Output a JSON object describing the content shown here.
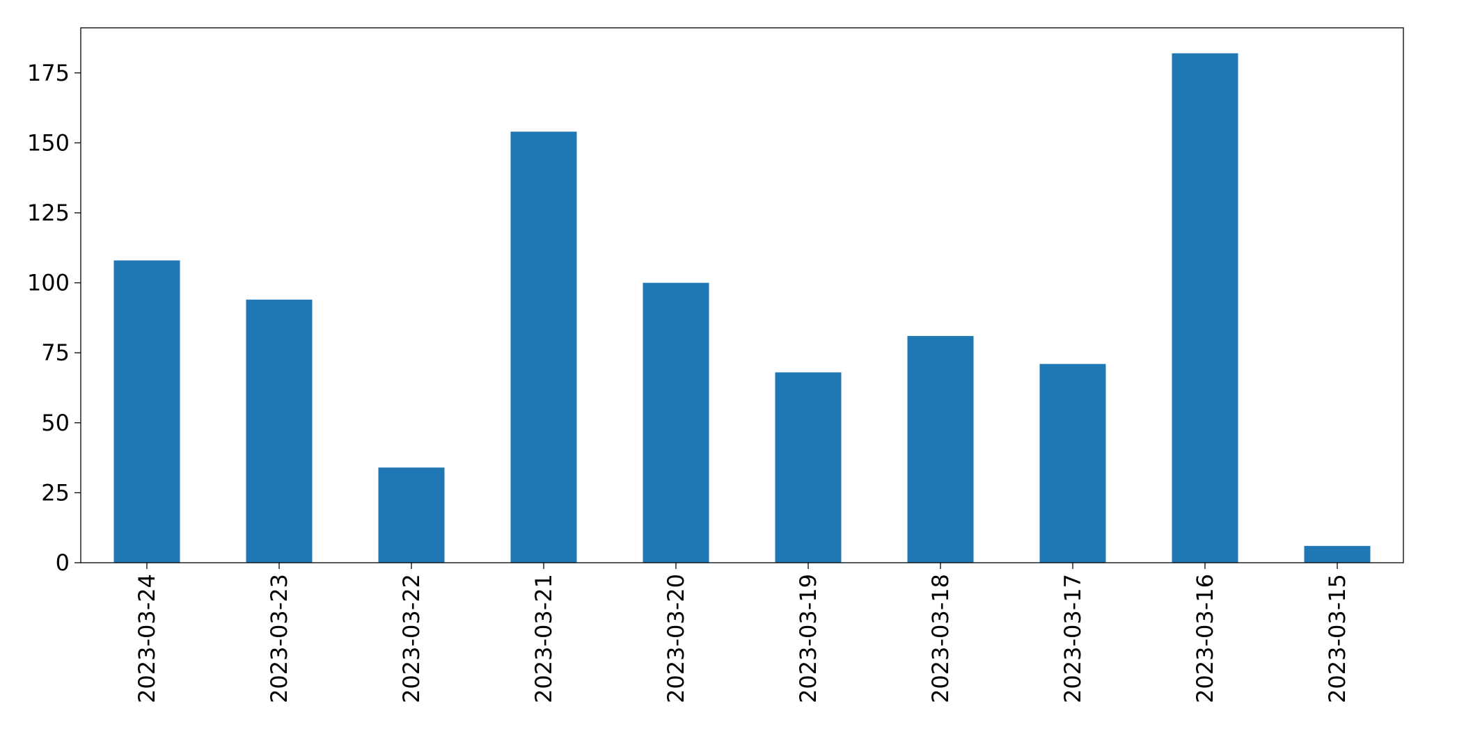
{
  "chart_data": {
    "type": "bar",
    "categories": [
      "2023-03-24",
      "2023-03-23",
      "2023-03-22",
      "2023-03-21",
      "2023-03-20",
      "2023-03-19",
      "2023-03-18",
      "2023-03-17",
      "2023-03-16",
      "2023-03-15"
    ],
    "values": [
      108,
      94,
      34,
      154,
      100,
      68,
      81,
      71,
      182,
      6
    ],
    "color": "#1f77b4",
    "ylim": [
      0,
      191.1
    ],
    "yticks": [
      0,
      25,
      50,
      75,
      100,
      125,
      150,
      175
    ],
    "grid": false
  }
}
